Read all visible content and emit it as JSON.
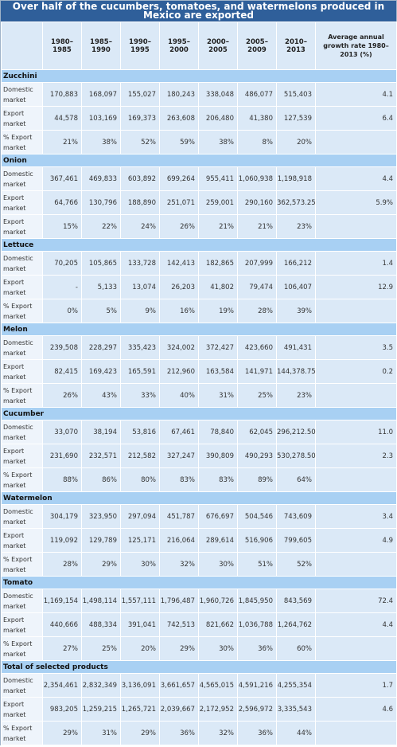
{
  "chart_data": {
    "type": "table",
    "title": "Over half of the cucumbers, tomatoes, and watermelons produced in Mexico are exported",
    "columns": [
      "1980–1985",
      "1985–1990",
      "1990–1995",
      "1995–2000",
      "2000–2005",
      "2005–2009",
      "2010–2013",
      "Average annual growth rate 1980–2013 (%)"
    ],
    "sections": [
      {
        "name": "Zucchini",
        "rows": [
          {
            "label": "Domestic market",
            "values": [
              "170,883",
              "168,097",
              "155,027",
              "180,243",
              "338,048",
              "486,077",
              "515,403"
            ],
            "avg": "4.1"
          },
          {
            "label": "Export market",
            "values": [
              "44,578",
              "103,169",
              "169,373",
              "263,608",
              "206,480",
              "41,380",
              "127,539"
            ],
            "avg": "6.4"
          },
          {
            "label": "% Export market",
            "values": [
              "21%",
              "38%",
              "52%",
              "59%",
              "38%",
              "8%",
              "20%"
            ],
            "avg": ""
          }
        ]
      },
      {
        "name": "Onion",
        "rows": [
          {
            "label": "Domestic market",
            "values": [
              "367,461",
              "469,833",
              "603,892",
              "699,264",
              "955,411",
              "1,060,938",
              "1,198,918"
            ],
            "avg": "4.4"
          },
          {
            "label": "Export market",
            "values": [
              "64,766",
              "130,796",
              "188,890",
              "251,071",
              "259,001",
              "290,160",
              "362,573.25"
            ],
            "avg": "5.9%"
          },
          {
            "label": "Export market",
            "values": [
              "15%",
              "22%",
              "24%",
              "26%",
              "21%",
              "21%",
              "23%"
            ],
            "avg": ""
          }
        ]
      },
      {
        "name": "Lettuce",
        "rows": [
          {
            "label": "Domestic market",
            "values": [
              "70,205",
              "105,865",
              "133,728",
              "142,413",
              "182,865",
              "207,999",
              "166,212"
            ],
            "avg": "1.4"
          },
          {
            "label": "Export market",
            "values": [
              "-",
              "5,133",
              "13,074",
              "26,203",
              "41,802",
              "79,474",
              "106,407"
            ],
            "avg": "12.9"
          },
          {
            "label": "% Export market",
            "values": [
              "0%",
              "5%",
              "9%",
              "16%",
              "19%",
              "28%",
              "39%"
            ],
            "avg": ""
          }
        ]
      },
      {
        "name": "Melon",
        "rows": [
          {
            "label": "Domestic market",
            "values": [
              "239,508",
              "228,297",
              "335,423",
              "324,002",
              "372,427",
              "423,660",
              "491,431"
            ],
            "avg": "3.5"
          },
          {
            "label": "Export market",
            "values": [
              "82,415",
              "169,423",
              "165,591",
              "212,960",
              "163,584",
              "141,971",
              "144,378.75"
            ],
            "avg": "0.2"
          },
          {
            "label": "% Export market",
            "values": [
              "26%",
              "43%",
              "33%",
              "40%",
              "31%",
              "25%",
              "23%"
            ],
            "avg": ""
          }
        ]
      },
      {
        "name": "Cucumber",
        "rows": [
          {
            "label": "Domestic market",
            "values": [
              "33,070",
              "38,194",
              "53,816",
              "67,461",
              "78,840",
              "62,045",
              "296,212.50"
            ],
            "avg": "11.0"
          },
          {
            "label": "Export market",
            "values": [
              "231,690",
              "232,571",
              "212,582",
              "327,247",
              "390,809",
              "490,293",
              "530,278.50"
            ],
            "avg": "2.3"
          },
          {
            "label": "% Export market",
            "values": [
              "88%",
              "86%",
              "80%",
              "83%",
              "83%",
              "89%",
              "64%"
            ],
            "avg": ""
          }
        ]
      },
      {
        "name": "Watermelon",
        "rows": [
          {
            "label": "Domestic market",
            "values": [
              "304,179",
              "323,950",
              "297,094",
              "451,787",
              "676,697",
              "504,546",
              "743,609"
            ],
            "avg": "3.4"
          },
          {
            "label": "Export market",
            "values": [
              "119,092",
              "129,789",
              "125,171",
              "216,064",
              "289,614",
              "516,906",
              "799,605"
            ],
            "avg": "4.9"
          },
          {
            "label": "% Export market",
            "values": [
              "28%",
              "29%",
              "30%",
              "32%",
              "30%",
              "51%",
              "52%"
            ],
            "avg": ""
          }
        ]
      },
      {
        "name": "Tomato",
        "rows": [
          {
            "label": "Domestic market",
            "values": [
              "1,169,154",
              "1,498,114",
              "1,557,111",
              "1,796,487",
              "1,960,726",
              "1,845,950",
              "843,569"
            ],
            "avg": "72.4"
          },
          {
            "label": "Export market",
            "values": [
              "440,666",
              "488,334",
              "391,041",
              "742,513",
              "821,662",
              "1,036,788",
              "1,264,762"
            ],
            "avg": "4.4"
          },
          {
            "label": "% Export market",
            "values": [
              "27%",
              "25%",
              "20%",
              "29%",
              "30%",
              "36%",
              "60%"
            ],
            "avg": ""
          }
        ]
      },
      {
        "name": "Total of selected products",
        "rows": [
          {
            "label": "Domestic market",
            "values": [
              "2,354,461",
              "2,832,349",
              "3,136,091",
              "3,661,657",
              "4,565,015",
              "4,591,216",
              "4,255,354"
            ],
            "avg": "1.7"
          },
          {
            "label": "Export market",
            "values": [
              "983,205",
              "1,259,215",
              "1,265,721",
              "2,039,667",
              "2,172,952",
              "2,596,972",
              "3,335,543"
            ],
            "avg": "4.6"
          },
          {
            "label": "% Export market",
            "values": [
              "29%",
              "31%",
              "29%",
              "36%",
              "32%",
              "36%",
              "44%"
            ],
            "avg": ""
          }
        ]
      }
    ]
  }
}
